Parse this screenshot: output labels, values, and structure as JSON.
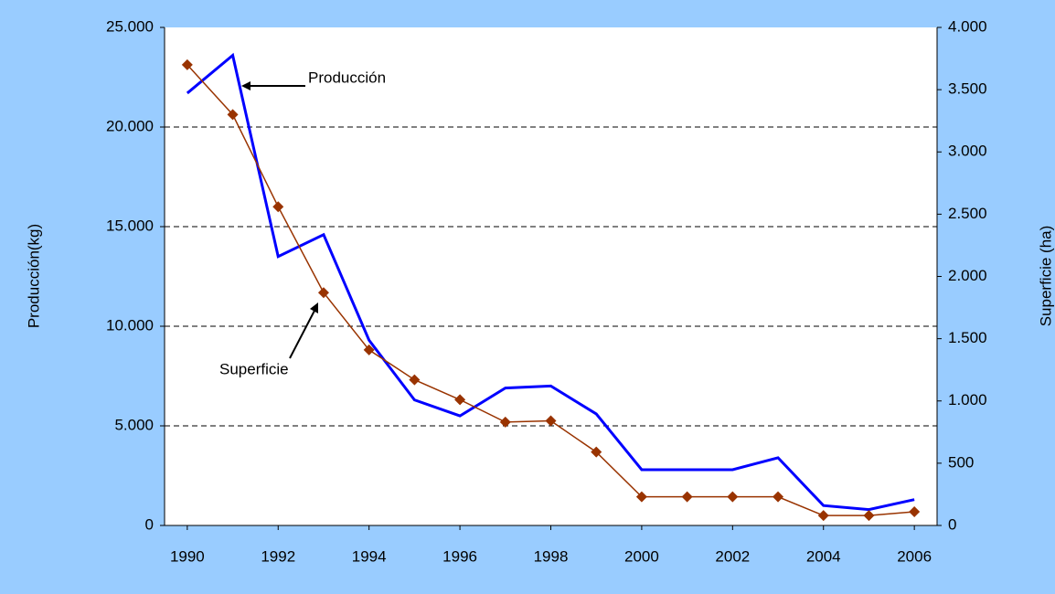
{
  "chart_data": {
    "type": "line",
    "y_label": "Producción(kg)",
    "y2_label": "Superficie (ha)",
    "x": [
      1990,
      1991,
      1992,
      1993,
      1994,
      1995,
      1996,
      1997,
      1998,
      1999,
      2000,
      2001,
      2002,
      2003,
      2004,
      2005,
      2006
    ],
    "xlim": [
      1989.5,
      2006.5
    ],
    "xticks": [
      1990,
      1992,
      1994,
      1996,
      1998,
      2000,
      2002,
      2004,
      2006
    ],
    "ylim": [
      0,
      25000
    ],
    "yticks": [
      0,
      {
        "value": 5000,
        "label": "5.000"
      },
      {
        "value": 10000,
        "label": "10.000"
      },
      {
        "value": 15000,
        "label": "15.000"
      },
      {
        "value": 20000,
        "label": "20.000"
      },
      {
        "value": 25000,
        "label": "25.000"
      }
    ],
    "y2lim": [
      0,
      4000
    ],
    "y2ticks": [
      0,
      500,
      {
        "value": 1000,
        "label": "1.000"
      },
      {
        "value": 1500,
        "label": "1.500"
      },
      {
        "value": 2000,
        "label": "2.000"
      },
      {
        "value": 2500,
        "label": "2.500"
      },
      {
        "value": 3000,
        "label": "3.000"
      },
      {
        "value": 3500,
        "label": "3.500"
      },
      {
        "value": 4000,
        "label": "4.000"
      }
    ],
    "grid": true,
    "series": [
      {
        "name": "Producción",
        "color": "#0000ff",
        "values": [
          21700,
          23600,
          13500,
          14600,
          9300,
          6300,
          5500,
          6900,
          7000,
          5600,
          2800,
          2800,
          2800,
          3400,
          1000,
          800,
          1300
        ]
      },
      {
        "name": "Superficie",
        "color": "#993300",
        "axis": "y2",
        "marker": "diamond",
        "values": [
          3700,
          3300,
          2560,
          1870,
          1410,
          1170,
          1010,
          830,
          840,
          590,
          230,
          230,
          230,
          230,
          80,
          80,
          110
        ]
      }
    ]
  }
}
